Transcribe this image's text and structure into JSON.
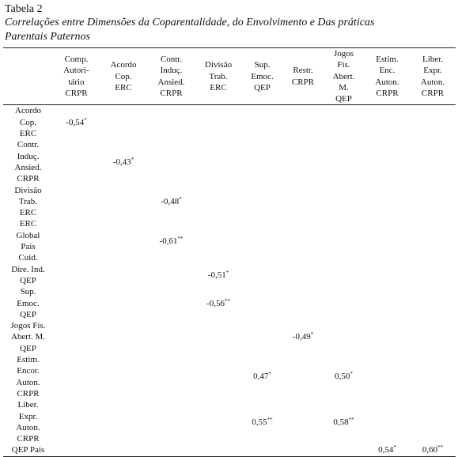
{
  "header": {
    "title": "Tabela 2",
    "caption": [
      "Correlações entre Dimensões da Coparentalidade, do Envolvimento e Das práticas",
      "Parentais Paternos"
    ]
  },
  "table": {
    "columns": [
      [
        "Comp.",
        "Autori-",
        "tário",
        "CRPR"
      ],
      [
        "Acordo",
        "Cop.",
        "ERC"
      ],
      [
        "Contr.",
        "Induç.",
        "Ansied.",
        "CRPR"
      ],
      [
        "Divisão",
        "Trab.",
        "ERC"
      ],
      [
        "Sup.",
        "Emoc.",
        "QEP"
      ],
      [
        "Restr.",
        "CRPR"
      ],
      [
        "Jogos",
        "Fís.",
        "Abert.",
        "M.",
        "QEP"
      ],
      [
        "Estim.",
        "Enc.",
        "Auton.",
        "CRPR"
      ],
      [
        "Liber.",
        "Expr.",
        "Auton.",
        "CRPR"
      ]
    ],
    "rows": [
      {
        "label": [
          "Acordo",
          "Cop.",
          "ERC"
        ],
        "cells": [
          {
            "text": "-0,54",
            "sig": "*"
          },
          null,
          null,
          null,
          null,
          null,
          null,
          null,
          null
        ]
      },
      {
        "label": [
          "Contr.",
          "Induç.",
          "Ansied.",
          "CRPR"
        ],
        "cells": [
          null,
          {
            "text": "-0,43",
            "sig": "*"
          },
          null,
          null,
          null,
          null,
          null,
          null,
          null
        ]
      },
      {
        "label": [
          "Divisão",
          "Trab.",
          "ERC"
        ],
        "cells": [
          null,
          null,
          {
            "text": "-0,48",
            "sig": "*"
          },
          null,
          null,
          null,
          null,
          null,
          null
        ]
      },
      {
        "label": [
          "ERC",
          "Global",
          "Pais",
          "Cuid."
        ],
        "cells": [
          null,
          null,
          {
            "text": "-0,61",
            "sig": "**"
          },
          null,
          null,
          null,
          null,
          null,
          null
        ]
      },
      {
        "label": [
          "Dire. Ind.",
          "QEP"
        ],
        "cells": [
          null,
          null,
          null,
          {
            "text": "-0,51",
            "sig": "*"
          },
          null,
          null,
          null,
          null,
          null
        ]
      },
      {
        "label": [
          "Sup.",
          "Emoc.",
          "QEP"
        ],
        "cells": [
          null,
          null,
          null,
          {
            "text": "-0,56",
            "sig": "**"
          },
          null,
          null,
          null,
          null,
          null
        ]
      },
      {
        "label": [
          "Jogos Fís.",
          "Abert. M.",
          "QEP"
        ],
        "cells": [
          null,
          null,
          null,
          null,
          null,
          {
            "text": "-0,49",
            "sig": "*"
          },
          null,
          null,
          null
        ]
      },
      {
        "label": [
          "Estim.",
          "Encor.",
          "Auton.",
          "CRPR"
        ],
        "cells": [
          null,
          null,
          null,
          null,
          {
            "text": "0,47",
            "sig": "*"
          },
          null,
          {
            "text": "0,50",
            "sig": "*"
          },
          null,
          null
        ]
      },
      {
        "label": [
          "Liber.",
          "Expr.",
          "Auton.",
          "CRPR"
        ],
        "cells": [
          null,
          null,
          null,
          null,
          {
            "text": "0,55",
            "sig": "**"
          },
          null,
          {
            "text": "0,58",
            "sig": "**"
          },
          null,
          null
        ]
      },
      {
        "label": [
          "QEP Pais"
        ],
        "cells": [
          null,
          null,
          null,
          null,
          null,
          null,
          null,
          {
            "text": "0,54",
            "sig": "*"
          },
          {
            "text": "0,60",
            "sig": "**"
          }
        ]
      }
    ]
  }
}
